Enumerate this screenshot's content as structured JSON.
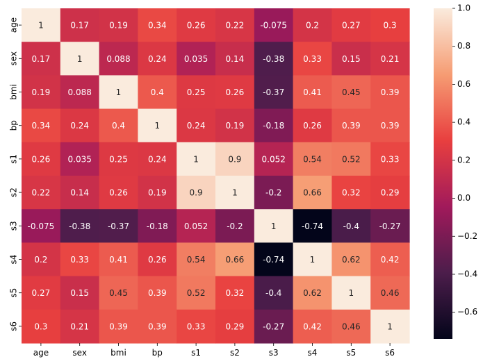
{
  "chart_data": {
    "type": "heatmap",
    "title": "",
    "xlabel": "",
    "ylabel": "",
    "x_labels": [
      "age",
      "sex",
      "bmi",
      "bp",
      "s1",
      "s2",
      "s3",
      "s4",
      "s5",
      "s6"
    ],
    "y_labels": [
      "age",
      "sex",
      "bmi",
      "bp",
      "s1",
      "s2",
      "s3",
      "s4",
      "s5",
      "s6"
    ],
    "values": [
      [
        1,
        0.17,
        0.19,
        0.34,
        0.26,
        0.22,
        -0.075,
        0.2,
        0.27,
        0.3
      ],
      [
        0.17,
        1,
        0.088,
        0.24,
        0.035,
        0.14,
        -0.38,
        0.33,
        0.15,
        0.21
      ],
      [
        0.19,
        0.088,
        1,
        0.4,
        0.25,
        0.26,
        -0.37,
        0.41,
        0.45,
        0.39
      ],
      [
        0.34,
        0.24,
        0.4,
        1,
        0.24,
        0.19,
        -0.18,
        0.26,
        0.39,
        0.39
      ],
      [
        0.26,
        0.035,
        0.25,
        0.24,
        1,
        0.9,
        0.052,
        0.54,
        0.52,
        0.33
      ],
      [
        0.22,
        0.14,
        0.26,
        0.19,
        0.9,
        1,
        -0.2,
        0.66,
        0.32,
        0.29
      ],
      [
        -0.075,
        -0.38,
        -0.37,
        -0.18,
        0.052,
        -0.2,
        1,
        -0.74,
        -0.4,
        -0.27
      ],
      [
        0.2,
        0.33,
        0.41,
        0.26,
        0.54,
        0.66,
        -0.74,
        1,
        0.62,
        0.42
      ],
      [
        0.27,
        0.15,
        0.45,
        0.39,
        0.52,
        0.32,
        -0.4,
        0.62,
        1,
        0.46
      ],
      [
        0.3,
        0.21,
        0.39,
        0.39,
        0.33,
        0.29,
        -0.27,
        0.42,
        0.46,
        1
      ]
    ],
    "annotations": [
      [
        "1",
        "0.17",
        "0.19",
        "0.34",
        "0.26",
        "0.22",
        "-0.075",
        "0.2",
        "0.27",
        "0.3"
      ],
      [
        "0.17",
        "1",
        "0.088",
        "0.24",
        "0.035",
        "0.14",
        "-0.38",
        "0.33",
        "0.15",
        "0.21"
      ],
      [
        "0.19",
        "0.088",
        "1",
        "0.4",
        "0.25",
        "0.26",
        "-0.37",
        "0.41",
        "0.45",
        "0.39"
      ],
      [
        "0.34",
        "0.24",
        "0.4",
        "1",
        "0.24",
        "0.19",
        "-0.18",
        "0.26",
        "0.39",
        "0.39"
      ],
      [
        "0.26",
        "0.035",
        "0.25",
        "0.24",
        "1",
        "0.9",
        "0.052",
        "0.54",
        "0.52",
        "0.33"
      ],
      [
        "0.22",
        "0.14",
        "0.26",
        "0.19",
        "0.9",
        "1",
        "-0.2",
        "0.66",
        "0.32",
        "0.29"
      ],
      [
        "-0.075",
        "-0.38",
        "-0.37",
        "-0.18",
        "0.052",
        "-0.2",
        "1",
        "-0.74",
        "-0.4",
        "-0.27"
      ],
      [
        "0.2",
        "0.33",
        "0.41",
        "0.26",
        "0.54",
        "0.66",
        "-0.74",
        "1",
        "0.62",
        "0.42"
      ],
      [
        "0.27",
        "0.15",
        "0.45",
        "0.39",
        "0.52",
        "0.32",
        "-0.4",
        "0.62",
        "1",
        "0.46"
      ],
      [
        "0.3",
        "0.21",
        "0.39",
        "0.39",
        "0.33",
        "0.29",
        "-0.27",
        "0.42",
        "0.46",
        "1"
      ]
    ],
    "colorbar": {
      "vmin": -0.74,
      "vmax": 1.0,
      "ticks": [
        1.0,
        0.8,
        0.6,
        0.4,
        0.2,
        0.0,
        -0.2,
        -0.4,
        -0.6
      ],
      "tick_labels": [
        "1.0",
        "0.8",
        "0.6",
        "0.4",
        "0.2",
        "0.0",
        "−0.2",
        "−0.4",
        "−0.6"
      ]
    },
    "colormap_stops": [
      "#03051a",
      "#4c1d4b",
      "#a11a5b",
      "#e83f3f",
      "#f69c73",
      "#faebdd"
    ]
  }
}
